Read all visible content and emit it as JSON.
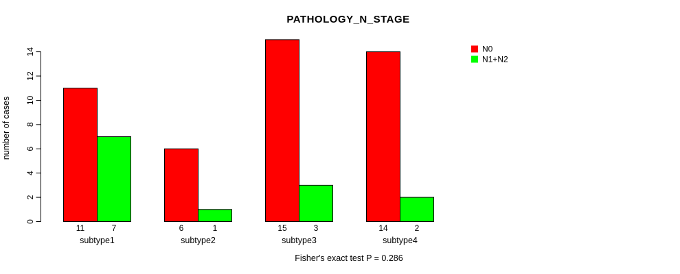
{
  "chart_data": {
    "type": "bar",
    "title": "PATHOLOGY_N_STAGE",
    "ylabel": "number of cases",
    "xlabel": "",
    "categories": [
      "subtype1",
      "subtype2",
      "subtype3",
      "subtype4"
    ],
    "series": [
      {
        "name": "N0",
        "color": "#FF0000",
        "values": [
          11,
          6,
          15,
          14
        ]
      },
      {
        "name": "N1+N2",
        "color": "#00FF00",
        "values": [
          7,
          1,
          3,
          2
        ]
      }
    ],
    "value_labels_shown": true,
    "yticks": [
      0,
      2,
      4,
      6,
      8,
      10,
      12,
      14
    ],
    "ylim": [
      0,
      14
    ],
    "grid": false,
    "legend_position": "top-right",
    "annotation": "Fisher's exact test P = 0.286"
  }
}
